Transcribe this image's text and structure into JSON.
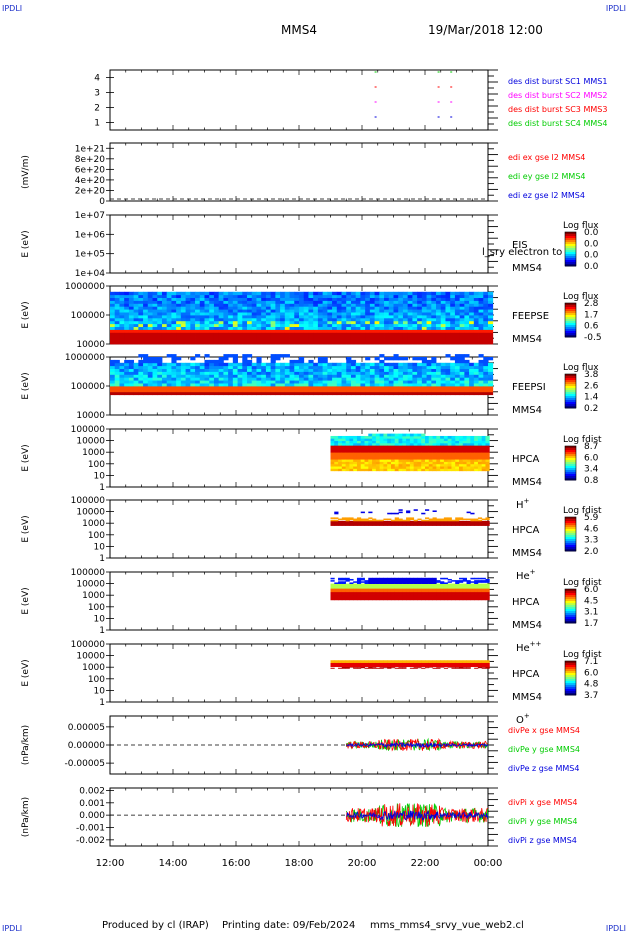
{
  "corner_label": "IPDLI",
  "header": {
    "spacecraft": "MMS4",
    "datetime": "19/Mar/2018 12:00"
  },
  "footer": {
    "produced_by": "Produced by cl (IRAP)",
    "printing_date": "Printing date: 09/Feb/2024",
    "filename": "mms_mms4_srvy_vue_web2.cl"
  },
  "colors": {
    "red": "#ff0000",
    "green": "#00cc00",
    "blue": "#0000dd",
    "magenta": "#ff00ff",
    "panel_border": "#000000"
  },
  "chart_data": [
    {
      "id": "burst",
      "type": "scatter",
      "ylim": [
        0.5,
        4.5
      ],
      "yticks": [
        "1",
        "2",
        "3",
        "4"
      ],
      "ytick_values": [
        1,
        2,
        3,
        4
      ],
      "series": [
        {
          "name": "des dist burst SC1 MMS1",
          "color": "#0000dd",
          "y": 1,
          "x": [
            20.4,
            22.4,
            22.8
          ]
        },
        {
          "name": "des dist burst SC2 MMS2",
          "color": "#ff00ff",
          "y": 2,
          "x": [
            20.4,
            22.4,
            22.8
          ]
        },
        {
          "name": "des dist burst SC3 MMS3",
          "color": "#ff0000",
          "y": 3,
          "x": [
            20.4,
            22.4,
            22.8
          ]
        },
        {
          "name": "des dist burst SC4 MMS4",
          "color": "#00cc00",
          "y": 4,
          "x": [
            20.4,
            22.4,
            22.8
          ]
        }
      ]
    },
    {
      "id": "edi",
      "type": "line",
      "ylabel": "(mV/m)",
      "ylim": [
        0,
        1.1
      ],
      "yticks": [
        "0",
        "2e+20",
        "4e+20",
        "6e+20",
        "8e+20",
        "1e+21"
      ],
      "ytick_values": [
        0,
        0.2,
        0.4,
        0.6,
        0.8,
        1.0
      ],
      "series": [
        {
          "name": "edi ex gse l2 MMS4",
          "color": "#ff0000"
        },
        {
          "name": "edi ey gse l2 MMS4",
          "color": "#00cc00"
        },
        {
          "name": "edi ez gse l2 MMS4",
          "color": "#0000dd"
        }
      ]
    },
    {
      "id": "eis",
      "type": "heatmap",
      "ylabel": "E (eV)",
      "ylim": [
        4,
        7
      ],
      "yticks": [
        "1e+04",
        "1e+05",
        "1e+06",
        "1e+07"
      ],
      "ytick_values": [
        4,
        5,
        6,
        7
      ],
      "label": "EIS",
      "sublabel": "MMS4",
      "overlay": "l_sry electron to",
      "colorbar": {
        "title": "Log flux",
        "ticks": [
          "0.0",
          "0.0",
          "0.0",
          "0.0"
        ]
      },
      "coverage": null
    },
    {
      "id": "feepse",
      "type": "heatmap",
      "ylabel": "E (eV)",
      "ylim": [
        4,
        6
      ],
      "yticks": [
        "10000",
        "100000",
        "1000000"
      ],
      "ytick_values": [
        4,
        5,
        6
      ],
      "label": "FEEPSE",
      "sublabel": "MMS4",
      "colorbar": {
        "title": "Log flux",
        "ticks": [
          "2.8",
          "1.7",
          "0.6",
          "-0.5"
        ]
      },
      "coverage": [
        12,
        24
      ]
    },
    {
      "id": "feepsi",
      "type": "heatmap",
      "ylabel": "E (eV)",
      "ylim": [
        4,
        6
      ],
      "yticks": [
        "10000",
        "100000",
        "1000000"
      ],
      "ytick_values": [
        4,
        5,
        6
      ],
      "label": "FEEPSI",
      "sublabel": "MMS4",
      "colorbar": {
        "title": "Log flux",
        "ticks": [
          "3.8",
          "2.6",
          "1.4",
          "0.2"
        ]
      },
      "coverage": [
        12,
        24
      ]
    },
    {
      "id": "hpca_h",
      "type": "heatmap",
      "ylabel": "E (eV)",
      "ylim": [
        0,
        5
      ],
      "yticks": [
        "1",
        "10",
        "100",
        "1000",
        "10000",
        "100000"
      ],
      "ytick_values": [
        0,
        1,
        2,
        3,
        4,
        5
      ],
      "label": "HPCA",
      "sublabel": "MMS4",
      "species": "H",
      "species_sup": "+",
      "colorbar": {
        "title": "Log fdist",
        "ticks": [
          "8.7",
          "6.0",
          "3.4",
          "0.8"
        ]
      },
      "coverage": [
        19.0,
        24
      ]
    },
    {
      "id": "hpca_he",
      "type": "heatmap",
      "ylabel": "E (eV)",
      "ylim": [
        0,
        5
      ],
      "yticks": [
        "1",
        "10",
        "100",
        "1000",
        "10000",
        "100000"
      ],
      "ytick_values": [
        0,
        1,
        2,
        3,
        4,
        5
      ],
      "label": "HPCA",
      "sublabel": "MMS4",
      "species": "He",
      "species_sup": "+",
      "colorbar": {
        "title": "Log fdist",
        "ticks": [
          "5.9",
          "4.6",
          "3.3",
          "2.0"
        ]
      },
      "coverage": [
        19.0,
        24
      ]
    },
    {
      "id": "hpca_hepp",
      "type": "heatmap",
      "ylabel": "E (eV)",
      "ylim": [
        0,
        5
      ],
      "yticks": [
        "1",
        "10",
        "100",
        "1000",
        "10000",
        "100000"
      ],
      "ytick_values": [
        0,
        1,
        2,
        3,
        4,
        5
      ],
      "label": "HPCA",
      "sublabel": "MMS4",
      "species": "He",
      "species_sup": "++",
      "colorbar": {
        "title": "Log fdist",
        "ticks": [
          "6.0",
          "4.5",
          "3.1",
          "1.7"
        ]
      },
      "coverage": [
        19.0,
        24
      ]
    },
    {
      "id": "hpca_o",
      "type": "heatmap",
      "ylabel": "E (eV)",
      "ylim": [
        0,
        5
      ],
      "yticks": [
        "1",
        "10",
        "100",
        "1000",
        "10000",
        "100000"
      ],
      "ytick_values": [
        0,
        1,
        2,
        3,
        4,
        5
      ],
      "label": "HPCA",
      "sublabel": "MMS4",
      "species": "O",
      "species_sup": "+",
      "colorbar": {
        "title": "Log fdist",
        "ticks": [
          "7.1",
          "6.0",
          "4.8",
          "3.7"
        ]
      },
      "coverage": [
        19.0,
        24
      ]
    },
    {
      "id": "divpe",
      "type": "line",
      "ylabel": "(nPa/km)",
      "ylim": [
        -8e-05,
        8e-05
      ],
      "yticks": [
        "-0.00005",
        "0.00000",
        "0.00005"
      ],
      "ytick_values": [
        -5e-05,
        0,
        5e-05
      ],
      "series": [
        {
          "name": "divPe x gse MMS4",
          "color": "#ff0000"
        },
        {
          "name": "divPe y gse MMS4",
          "color": "#00cc00"
        },
        {
          "name": "divPe z gse MMS4",
          "color": "#0000dd"
        }
      ],
      "data_start": 19.5,
      "amp": 1e-05
    },
    {
      "id": "divpi",
      "type": "line",
      "ylabel": "(nPa/km)",
      "ylim": [
        -0.0025,
        0.0022
      ],
      "yticks": [
        "-0.002",
        "-0.001",
        "0.000",
        "0.001",
        "0.002"
      ],
      "ytick_values": [
        -0.002,
        -0.001,
        0,
        0.001,
        0.002
      ],
      "series": [
        {
          "name": "divPi x gse MMS4",
          "color": "#ff0000"
        },
        {
          "name": "divPi y gse MMS4",
          "color": "#00cc00"
        },
        {
          "name": "divPi z gse MMS4",
          "color": "#0000dd"
        }
      ],
      "data_start": 19.5,
      "amp": 0.0006
    }
  ],
  "xaxis": {
    "range": [
      12,
      24
    ],
    "ticks": [
      "12:00",
      "14:00",
      "16:00",
      "18:00",
      "20:00",
      "22:00",
      "00:00"
    ],
    "tick_values": [
      12,
      14,
      16,
      18,
      20,
      22,
      24
    ]
  }
}
